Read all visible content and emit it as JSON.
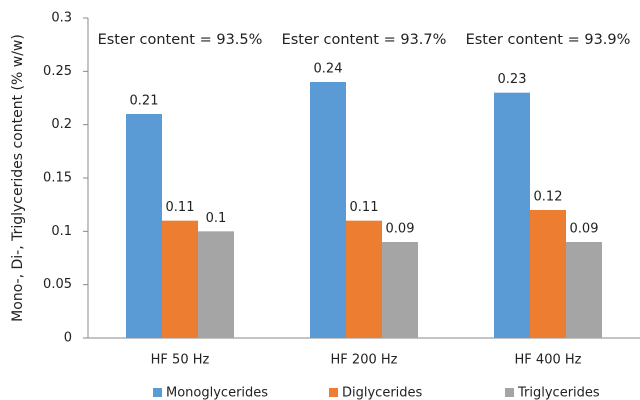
{
  "chart_data": {
    "type": "bar",
    "y_label": "Mono-, Di-, Triglycerides content (% w/w)",
    "categories": [
      "HF 50 Hz",
      "HF 200 Hz",
      "HF 400 Hz"
    ],
    "annotations": [
      "Ester content = 93.5%",
      "Ester content = 93.7%",
      "Ester content = 93.9%"
    ],
    "series": [
      {
        "name": "Monoglycerides",
        "color": "#5b9bd5",
        "values": [
          0.21,
          0.24,
          0.23
        ]
      },
      {
        "name": "Diglycerides",
        "color": "#ed7d31",
        "values": [
          0.11,
          0.11,
          0.12
        ]
      },
      {
        "name": "Triglycerides",
        "color": "#a5a5a5",
        "values": [
          0.1,
          0.09,
          0.09
        ]
      }
    ],
    "ylim": [
      0,
      0.3
    ],
    "yticks": [
      0,
      0.05,
      0.1,
      0.15,
      0.2,
      0.25,
      0.3
    ],
    "grid": false,
    "legend": "bottom"
  }
}
